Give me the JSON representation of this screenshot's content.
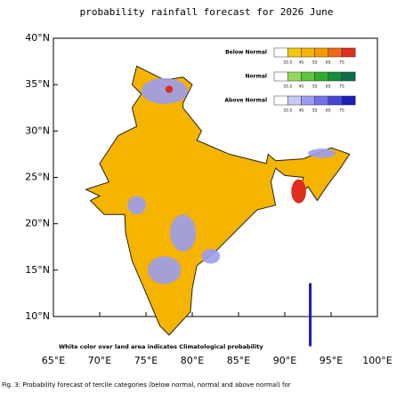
{
  "title": "probability rainfall forecast for 2026 June",
  "axes": {
    "x_ticks": [
      {
        "value": 65,
        "label": "65°E"
      },
      {
        "value": 70,
        "label": "70°E"
      },
      {
        "value": 75,
        "label": "75°E"
      },
      {
        "value": 80,
        "label": "80°E"
      },
      {
        "value": 85,
        "label": "85°E"
      },
      {
        "value": 90,
        "label": "90°E"
      },
      {
        "value": 95,
        "label": "95°E"
      },
      {
        "value": 100,
        "label": "100°E"
      }
    ],
    "y_ticks": [
      {
        "value": 10,
        "label": "10°N"
      },
      {
        "value": 15,
        "label": "15°N"
      },
      {
        "value": 20,
        "label": "20°N"
      },
      {
        "value": 25,
        "label": "25°N"
      },
      {
        "value": 30,
        "label": "30°N"
      },
      {
        "value": 35,
        "label": "35°N"
      },
      {
        "value": 40,
        "label": "40°N"
      }
    ]
  },
  "legend": {
    "ticks": [
      "33.5",
      "45",
      "55",
      "65",
      "75"
    ],
    "rows": [
      {
        "label": "Below Normal",
        "colors": [
          "#ffffff",
          "#f3c810",
          "#f5b300",
          "#f49a00",
          "#ec6a1a",
          "#dd2e1e"
        ]
      },
      {
        "label": "Normal",
        "colors": [
          "#ffffff",
          "#93d95c",
          "#5ec43c",
          "#2ead2a",
          "#178c3a",
          "#0c6e48"
        ]
      },
      {
        "label": "Above Normal",
        "colors": [
          "#ffffff",
          "#c9c9f5",
          "#9c9cf0",
          "#7272e8",
          "#4545d8",
          "#1c1cb8"
        ]
      }
    ]
  },
  "note": "White color over land area indicates Climatological probability",
  "caption": "Fig. 3: Probability forecast of tercile categories (below normal, normal and above normal) for"
}
